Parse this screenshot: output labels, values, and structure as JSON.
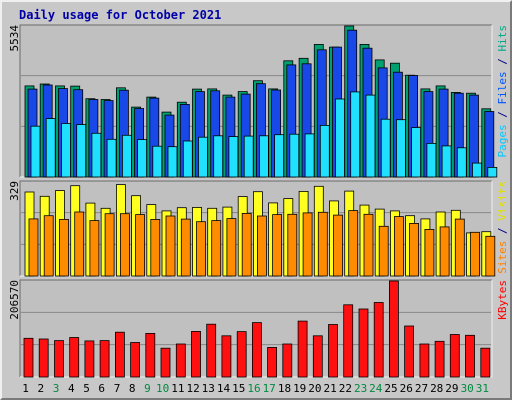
{
  "chart_data": {
    "type": "bar",
    "title": "Daily usage for October 2021",
    "categories": [
      "1",
      "2",
      "3",
      "4",
      "5",
      "6",
      "7",
      "8",
      "9",
      "10",
      "11",
      "12",
      "13",
      "14",
      "15",
      "16",
      "17",
      "18",
      "19",
      "20",
      "21",
      "22",
      "23",
      "24",
      "25",
      "26",
      "27",
      "28",
      "29",
      "30",
      "31"
    ],
    "weekend_days": [
      "3",
      "9",
      "10",
      "16",
      "17",
      "23",
      "24",
      "30",
      "31"
    ],
    "panels": [
      {
        "id": "hits_files_pages",
        "ymax": 5534,
        "ymax_label": "5534",
        "label_parts": [
          {
            "text": "Pages",
            "color": "#00c8ff"
          },
          {
            "text": " / ",
            "color": "#000080"
          },
          {
            "text": "Files",
            "color": "#0055ff"
          },
          {
            "text": " / ",
            "color": "#000080"
          },
          {
            "text": "Hits",
            "color": "#00aa88"
          }
        ],
        "series": [
          {
            "name": "Hits",
            "color": "#00a070",
            "values": [
              3340,
              3410,
              3340,
              3330,
              2870,
              2840,
              3270,
              2560,
              2930,
              2380,
              2740,
              3220,
              3230,
              3000,
              3130,
              3530,
              3230,
              4260,
              4350,
              4860,
              4760,
              5534,
              4860,
              4290,
              4170,
              3730,
              3230,
              3340,
              3100,
              3070,
              2500
            ]
          },
          {
            "name": "Files",
            "color": "#1848e8",
            "values": [
              3220,
              3370,
              3240,
              3200,
              2840,
              2800,
              3180,
              2510,
              2890,
              2270,
              2660,
              3130,
              3160,
              2930,
              3040,
              3420,
              3190,
              4110,
              4150,
              4660,
              4760,
              5380,
              4720,
              4000,
              3840,
              3720,
              3130,
              3220,
              3070,
              3000,
              2400
            ]
          },
          {
            "name": "Pages",
            "color": "#20e0ff",
            "values": [
              1860,
              2140,
              1960,
              1920,
              1600,
              1380,
              1530,
              1370,
              1130,
              1110,
              1320,
              1460,
              1510,
              1480,
              1500,
              1510,
              1550,
              1570,
              1580,
              1890,
              2860,
              3120,
              3000,
              2120,
              2100,
              1810,
              1230,
              1140,
              1070,
              510,
              350
            ]
          }
        ]
      },
      {
        "id": "visits_sites",
        "ymax": 329,
        "ymax_label": "329",
        "label_parts": [
          {
            "text": "Sites",
            "color": "#ff8000"
          },
          {
            "text": " / ",
            "color": "#000080"
          },
          {
            "text": "Visits",
            "color": "#e0e000"
          }
        ],
        "series": [
          {
            "name": "Visits",
            "color": "#ffff20",
            "values": [
              294,
              279,
              299,
              316,
              255,
              237,
              320,
              281,
              250,
              228,
              239,
              240,
              237,
              241,
              278,
              295,
              256,
              271,
              296,
              314,
              263,
              297,
              248,
              234,
              228,
              211,
              200,
              224,
              230,
              151,
              155
            ]
          },
          {
            "name": "Sites",
            "color": "#ff8c00",
            "values": [
              200,
              211,
              198,
              224,
              194,
              218,
              218,
              215,
              198,
              210,
              199,
              190,
              194,
              201,
              219,
              210,
              215,
              216,
              221,
              223,
              213,
              229,
              216,
              174,
              208,
              184,
              163,
              172,
              199,
              153,
              139
            ]
          }
        ]
      },
      {
        "id": "kbytes",
        "ymax": 206570,
        "ymax_label": "206570",
        "label_parts": [
          {
            "text": "KBytes",
            "color": "#ff0000"
          }
        ],
        "series": [
          {
            "name": "KBytes",
            "color": "#ff1010",
            "values": [
              83300,
              81700,
              78400,
              85000,
              77600,
              78400,
              96500,
              74300,
              93800,
              62000,
              71100,
              98200,
              113700,
              88600,
              97700,
              117000,
              63700,
              71100,
              120300,
              88600,
              112900,
              155400,
              146300,
              160300,
              206570,
              109800,
              71100,
              76800,
              91400,
              89700,
              62000
            ]
          }
        ]
      }
    ]
  }
}
